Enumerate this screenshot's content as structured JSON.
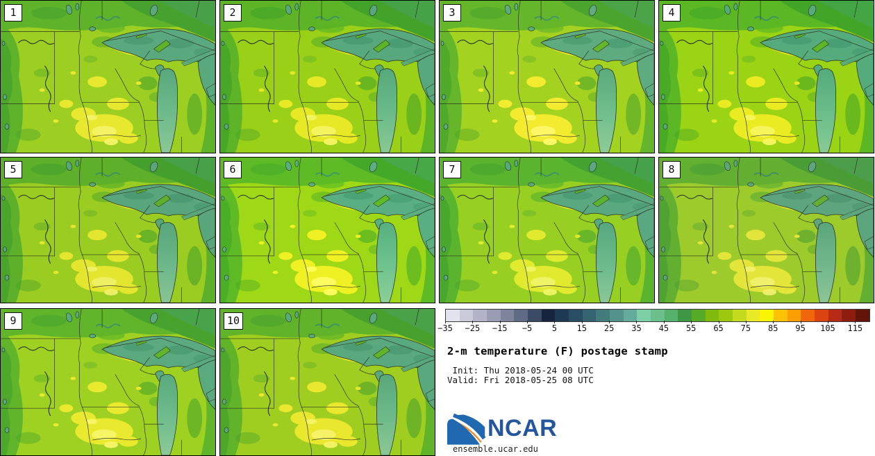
{
  "panels": [
    {
      "label": "1"
    },
    {
      "label": "2"
    },
    {
      "label": "3"
    },
    {
      "label": "4"
    },
    {
      "label": "5"
    },
    {
      "label": "6"
    },
    {
      "label": "7"
    },
    {
      "label": "8"
    },
    {
      "label": "9"
    },
    {
      "label": "10"
    }
  ],
  "colorbar": {
    "min": -35,
    "max": 120,
    "segments": [
      "#e2e3ed",
      "#cacbda",
      "#b2b3c6",
      "#999cb2",
      "#7f849c",
      "#5f6b84",
      "#3b4b66",
      "#17243d",
      "#1e3954",
      "#294e63",
      "#356470",
      "#437b7d",
      "#53938c",
      "#65ab9b",
      "#7ecfa6",
      "#6abf8a",
      "#55b06e",
      "#3e9745",
      "#55aa28",
      "#81ba0f",
      "#9cc810",
      "#c3da1e",
      "#e9e928",
      "#fbf402",
      "#fcc303",
      "#fa9e02",
      "#f0660a",
      "#db4410",
      "#b52b15",
      "#8e1d10",
      "#64130a"
    ],
    "ticks": [
      {
        "label": "−35",
        "value": -35
      },
      {
        "label": "−25",
        "value": -25
      },
      {
        "label": "−15",
        "value": -15
      },
      {
        "label": "−5",
        "value": -5
      },
      {
        "label": "5",
        "value": 5
      },
      {
        "label": "15",
        "value": 15
      },
      {
        "label": "25",
        "value": 25
      },
      {
        "label": "35",
        "value": 35
      },
      {
        "label": "45",
        "value": 45
      },
      {
        "label": "55",
        "value": 55
      },
      {
        "label": "65",
        "value": 65
      },
      {
        "label": "75",
        "value": 75
      },
      {
        "label": "85",
        "value": 85
      },
      {
        "label": "95",
        "value": 95
      },
      {
        "label": "105",
        "value": 105
      },
      {
        "label": "115",
        "value": 115
      }
    ]
  },
  "legend": {
    "title": "2-m temperature (F) postage stamp",
    "init_line": " Init: Thu 2018-05-24 00 UTC",
    "valid_line": "Valid: Fri 2018-05-25 08 UTC"
  },
  "branding": {
    "logo_text": "NCAR",
    "url": "ensemble.ucar.edu",
    "logo_blue": "#2068b0",
    "logo_orange": "#ec8d30"
  },
  "map_colors": {
    "land_bright": "#9ccf21",
    "land_mid": "#5fb32b",
    "land_dark": "#46a12e",
    "land_teal": "#49a263",
    "warm_yellow": "#e7e82f",
    "pale_yellow": "#f4f468",
    "lake": "#5aa87e",
    "lake_dark": "#3f8f68",
    "lake_light": "#85c795",
    "line": "#2d3322"
  },
  "chart_data": {
    "type": "heatmap",
    "title": "2-m temperature (F) postage stamp",
    "variable": "2-m temperature",
    "units": "F",
    "init_time": "Thu 2018-05-24 00 UTC",
    "valid_time": "Fri 2018-05-25 08 UTC",
    "ensemble_members": [
      "1",
      "2",
      "3",
      "4",
      "5",
      "6",
      "7",
      "8",
      "9",
      "10"
    ],
    "grid_layout": "4 + 4 + 2 postage-stamp panels, legend lower-right",
    "region": "Upper Midwest / Great Lakes (Dakotas, Nebraska, Minnesota, Iowa, Wisconsin, Illinois, Michigan, Lakes Superior/Michigan/Huron)",
    "colorbar_range": [
      -35,
      120
    ],
    "colorbar_tick_values": [
      -35,
      -25,
      -15,
      -5,
      5,
      15,
      25,
      35,
      45,
      55,
      65,
      75,
      85,
      95,
      105,
      115
    ],
    "colorbar_segment_step_F": 5,
    "approx_depicted_values_F": {
      "land": [
        55,
        80
      ],
      "lakes": [
        40,
        50
      ],
      "warm_yellow_patches": [
        75,
        85
      ]
    },
    "legend_position": "bottom-right"
  }
}
